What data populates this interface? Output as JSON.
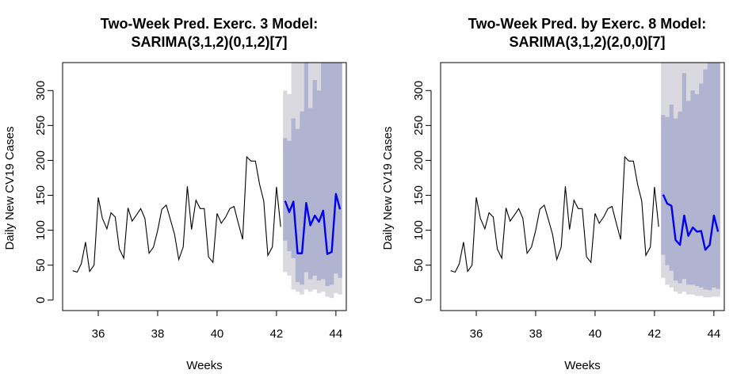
{
  "chart_data": [
    {
      "type": "line",
      "title": [
        "Two-Week Pred. Exerc. 3 Model:",
        "SARIMA(3,1,2)(0,1,2)[7]"
      ],
      "xlabel": "Weeks",
      "ylabel": "Daily New CV19 Cases",
      "xlim": [
        34.8,
        44.35
      ],
      "ylim": [
        -15,
        340
      ],
      "xticks": [
        36,
        38,
        40,
        42,
        44
      ],
      "yticks": [
        0,
        50,
        100,
        150,
        200,
        250,
        300
      ],
      "colors": {
        "observed": "#000000",
        "forecast": "#0000ee",
        "band80": "#b0b4d0",
        "band95": "#d9d9df"
      },
      "observed": {
        "x": [
          35.14,
          35.29,
          35.43,
          35.57,
          35.71,
          35.86,
          36.0,
          36.14,
          36.29,
          36.43,
          36.57,
          36.71,
          36.86,
          37.0,
          37.14,
          37.29,
          37.43,
          37.57,
          37.71,
          37.86,
          38.0,
          38.14,
          38.29,
          38.43,
          38.57,
          38.71,
          38.86,
          39.0,
          39.14,
          39.29,
          39.43,
          39.57,
          39.71,
          39.86,
          40.0,
          40.14,
          40.29,
          40.43,
          40.57,
          40.71,
          40.86,
          41.0,
          41.14,
          41.29,
          41.43,
          41.57,
          41.71,
          41.86,
          42.0,
          42.14
        ],
        "y": [
          42,
          40,
          52,
          83,
          41,
          50,
          147,
          117,
          102,
          125,
          119,
          73,
          60,
          132,
          113,
          122,
          131,
          117,
          67,
          76,
          100,
          130,
          136,
          115,
          94,
          58,
          76,
          163,
          101,
          143,
          131,
          131,
          62,
          54,
          124,
          110,
          119,
          131,
          134,
          111,
          87,
          205,
          199,
          199,
          166,
          142,
          64,
          76,
          162,
          105
        ]
      },
      "forecast": {
        "x": [
          42.29,
          42.43,
          42.57,
          42.71,
          42.86,
          43.0,
          43.14,
          43.29,
          43.43,
          43.57,
          43.71,
          43.86,
          44.0,
          44.14
        ],
        "y": [
          142,
          126,
          141,
          67,
          67,
          139,
          107,
          121,
          112,
          128,
          66,
          69,
          152,
          130
        ],
        "lo80": [
          85,
          70,
          60,
          26,
          22,
          40,
          30,
          35,
          28,
          30,
          20,
          22,
          38,
          32
        ],
        "hi80": [
          232,
          228,
          260,
          245,
          270,
          340,
          275,
          315,
          300,
          340,
          360,
          400,
          450,
          460
        ],
        "lo95": [
          40,
          35,
          15,
          12,
          8,
          15,
          12,
          15,
          10,
          12,
          5,
          3,
          10,
          8
        ],
        "hi95": [
          300,
          295,
          350,
          345,
          340,
          420,
          360,
          400,
          380,
          420,
          460,
          500,
          560,
          580
        ]
      }
    },
    {
      "type": "line",
      "title": [
        "Two-Week Pred. by Exerc. 8 Model:",
        "SARIMA(3,1,2)(2,0,0)[7]"
      ],
      "xlabel": "Weeks",
      "ylabel": "Daily New CV19 Cases",
      "xlim": [
        34.8,
        44.35
      ],
      "ylim": [
        -15,
        340
      ],
      "xticks": [
        36,
        38,
        40,
        42,
        44
      ],
      "yticks": [
        0,
        50,
        100,
        150,
        200,
        250,
        300
      ],
      "colors": {
        "observed": "#000000",
        "forecast": "#0000ee",
        "band80": "#b0b4d0",
        "band95": "#d9d9df"
      },
      "observed": {
        "x": [
          35.14,
          35.29,
          35.43,
          35.57,
          35.71,
          35.86,
          36.0,
          36.14,
          36.29,
          36.43,
          36.57,
          36.71,
          36.86,
          37.0,
          37.14,
          37.29,
          37.43,
          37.57,
          37.71,
          37.86,
          38.0,
          38.14,
          38.29,
          38.43,
          38.57,
          38.71,
          38.86,
          39.0,
          39.14,
          39.29,
          39.43,
          39.57,
          39.71,
          39.86,
          40.0,
          40.14,
          40.29,
          40.43,
          40.57,
          40.71,
          40.86,
          41.0,
          41.14,
          41.29,
          41.43,
          41.57,
          41.71,
          41.86,
          42.0,
          42.14
        ],
        "y": [
          42,
          40,
          52,
          83,
          41,
          50,
          147,
          117,
          102,
          125,
          119,
          73,
          60,
          132,
          113,
          122,
          131,
          117,
          67,
          76,
          100,
          130,
          136,
          115,
          94,
          58,
          76,
          163,
          101,
          143,
          131,
          131,
          62,
          54,
          124,
          110,
          119,
          131,
          134,
          111,
          87,
          205,
          199,
          199,
          166,
          142,
          64,
          76,
          162,
          105
        ]
      },
      "forecast": {
        "x": [
          42.29,
          42.43,
          42.57,
          42.71,
          42.86,
          43.0,
          43.14,
          43.29,
          43.43,
          43.57,
          43.71,
          43.86,
          44.0,
          44.14
        ],
        "y": [
          151,
          138,
          135,
          86,
          79,
          121,
          92,
          104,
          98,
          99,
          72,
          79,
          121,
          98
        ],
        "lo80": [
          65,
          50,
          42,
          28,
          24,
          30,
          22,
          22,
          20,
          18,
          15,
          14,
          18,
          16
        ],
        "hi80": [
          265,
          262,
          280,
          260,
          270,
          325,
          285,
          300,
          295,
          310,
          330,
          360,
          400,
          420
        ],
        "lo95": [
          32,
          22,
          18,
          12,
          9,
          12,
          8,
          8,
          6,
          6,
          4,
          4,
          5,
          5
        ],
        "hi95": [
          350,
          350,
          370,
          355,
          360,
          420,
          380,
          400,
          400,
          420,
          450,
          480,
          520,
          540
        ]
      }
    }
  ]
}
